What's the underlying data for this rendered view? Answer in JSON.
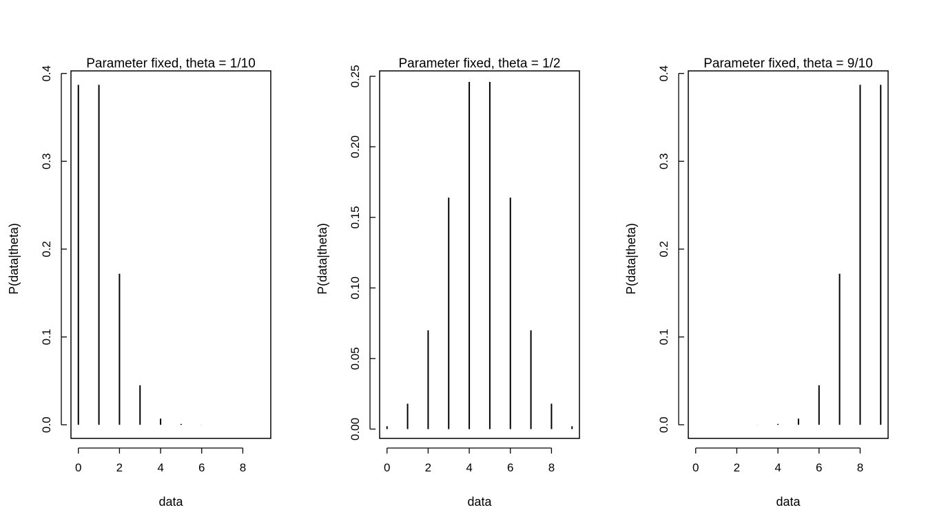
{
  "chart_data": [
    {
      "type": "bar",
      "title": "Parameter fixed, theta = 1/10",
      "xlabel": "data",
      "ylabel": "P(data|theta)",
      "x": [
        0,
        1,
        2,
        3,
        4,
        5,
        6,
        7,
        8,
        9
      ],
      "values": [
        0.387,
        0.387,
        0.172,
        0.045,
        0.007,
        0.001,
        0.0001,
        0.0,
        0.0,
        0.0
      ],
      "xlim": [
        -0.36,
        9.36
      ],
      "ylim": [
        -0.0155,
        0.4029
      ],
      "xticks": [
        "0",
        "2",
        "4",
        "6",
        "8"
      ],
      "yticks": [
        "0.0",
        "0.1",
        "0.2",
        "0.3",
        "0.4"
      ]
    },
    {
      "type": "bar",
      "title": "Parameter fixed, theta = 1/2",
      "xlabel": "data",
      "ylabel": "P(data|theta)",
      "x": [
        0,
        1,
        2,
        3,
        4,
        5,
        6,
        7,
        8,
        9
      ],
      "values": [
        0.002,
        0.018,
        0.07,
        0.164,
        0.246,
        0.246,
        0.164,
        0.07,
        0.018,
        0.002
      ],
      "xlim": [
        -0.36,
        9.36
      ],
      "ylim": [
        -0.0066,
        0.2538
      ],
      "xticks": [
        "0",
        "2",
        "4",
        "6",
        "8"
      ],
      "yticks": [
        "0.00",
        "0.05",
        "0.10",
        "0.15",
        "0.20",
        "0.25"
      ]
    },
    {
      "type": "bar",
      "title": "Parameter fixed, theta = 9/10",
      "xlabel": "data",
      "ylabel": "P(data|theta)",
      "x": [
        0,
        1,
        2,
        3,
        4,
        5,
        6,
        7,
        8,
        9
      ],
      "values": [
        0.0,
        0.0,
        0.0,
        0.0001,
        0.001,
        0.007,
        0.045,
        0.172,
        0.387,
        0.387
      ],
      "xlim": [
        -0.36,
        9.36
      ],
      "ylim": [
        -0.0155,
        0.4029
      ],
      "xticks": [
        "0",
        "2",
        "4",
        "6",
        "8"
      ],
      "yticks": [
        "0.0",
        "0.1",
        "0.2",
        "0.3",
        "0.4"
      ]
    }
  ]
}
